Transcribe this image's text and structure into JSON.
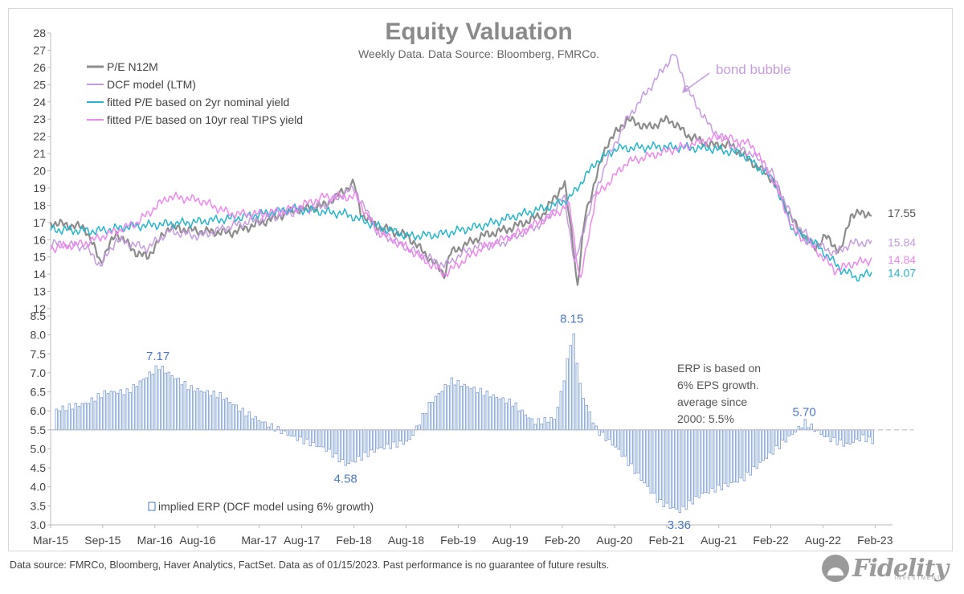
{
  "chart_data": {
    "type": "line",
    "title": "Equity Valuation",
    "subtitle": "Weekly Data. Data Source: Bloomberg, FMRCo.",
    "top_panel": {
      "ylim": [
        12,
        28
      ],
      "yticks": [
        12,
        13,
        14,
        15,
        16,
        17,
        18,
        19,
        20,
        21,
        22,
        23,
        24,
        25,
        26,
        27,
        28
      ],
      "series": [
        {
          "name": "P/E N12M",
          "color": "#8c8c8c",
          "end_label": "17.55",
          "x": [
            2015.17,
            2015.5,
            2015.65,
            2015.8,
            2016.0,
            2016.1,
            2016.3,
            2016.6,
            2016.9,
            2017.2,
            2017.5,
            2017.8,
            2018.08,
            2018.15,
            2018.3,
            2018.6,
            2018.95,
            2019.0,
            2019.3,
            2019.6,
            2019.9,
            2020.1,
            2020.2,
            2020.22,
            2020.3,
            2020.5,
            2020.7,
            2020.9,
            2021.1,
            2021.3,
            2021.5,
            2021.7,
            2021.9,
            2022.1,
            2022.3,
            2022.5,
            2022.6,
            2022.75,
            2022.85,
            2022.95,
            2023.05
          ],
          "values": [
            17.0,
            16.7,
            14.7,
            16.4,
            15.2,
            15.0,
            16.7,
            16.5,
            16.4,
            17.0,
            17.7,
            18.0,
            19.3,
            17.5,
            16.8,
            16.2,
            14.0,
            15.2,
            16.2,
            16.7,
            17.5,
            19.3,
            15.0,
            13.0,
            17.5,
            21.5,
            23.0,
            22.5,
            23.0,
            22.0,
            21.5,
            21.5,
            20.5,
            19.5,
            17.0,
            15.5,
            16.2,
            15.3,
            17.5,
            17.5,
            17.55
          ]
        },
        {
          "name": "DCF model (LTM)",
          "color": "#c79be0",
          "end_label": "",
          "x": [
            2015.17,
            2015.5,
            2015.65,
            2015.8,
            2016.1,
            2016.3,
            2016.6,
            2016.9,
            2017.2,
            2017.5,
            2017.8,
            2018.08,
            2018.3,
            2018.6,
            2018.95,
            2019.2,
            2019.5,
            2019.9,
            2020.1,
            2020.2,
            2020.3,
            2020.5,
            2020.7,
            2021.0,
            2021.15,
            2021.3,
            2021.5,
            2021.7,
            2021.9,
            2022.1,
            2022.3,
            2022.5,
            2022.7,
            2022.85,
            2023.05
          ],
          "values": [
            15.8,
            15.6,
            14.5,
            16.0,
            15.5,
            16.5,
            16.2,
            16.8,
            17.2,
            17.6,
            18.0,
            19.0,
            16.5,
            15.5,
            14.5,
            15.5,
            15.8,
            17.0,
            18.5,
            14.5,
            17.0,
            20.5,
            23.0,
            25.5,
            26.8,
            24.5,
            22.5,
            21.5,
            21.0,
            19.8,
            17.0,
            15.8,
            15.2,
            15.8,
            15.84
          ]
        },
        {
          "name": "fitted P/E based on 2yr nominal yield",
          "color": "#26b5cc",
          "end_label": "14.07",
          "x": [
            2015.17,
            2015.6,
            2016.0,
            2016.5,
            2017.0,
            2017.5,
            2018.0,
            2018.3,
            2018.6,
            2018.9,
            2019.3,
            2019.7,
            2020.0,
            2020.15,
            2020.4,
            2020.6,
            2021.0,
            2021.5,
            2021.8,
            2022.1,
            2022.3,
            2022.5,
            2022.75,
            2022.9,
            2023.05
          ],
          "values": [
            16.6,
            16.5,
            16.8,
            17.0,
            17.3,
            17.8,
            17.5,
            16.8,
            16.2,
            16.3,
            16.8,
            17.5,
            18.0,
            18.4,
            20.5,
            21.3,
            21.4,
            21.3,
            21.0,
            19.5,
            16.5,
            15.8,
            14.3,
            13.8,
            14.07
          ]
        },
        {
          "name": "fitted P/E based on 10yr real TIPS yield",
          "color": "#ee88ee",
          "end_label": "14.84",
          "x": [
            2015.17,
            2015.5,
            2015.8,
            2016.0,
            2016.3,
            2016.6,
            2016.9,
            2017.2,
            2017.5,
            2017.8,
            2018.1,
            2018.3,
            2018.6,
            2018.95,
            2019.3,
            2019.7,
            2020.0,
            2020.15,
            2020.25,
            2020.4,
            2020.7,
            2021.0,
            2021.3,
            2021.6,
            2021.9,
            2022.1,
            2022.3,
            2022.5,
            2022.7,
            2022.85,
            2023.05
          ],
          "values": [
            15.5,
            15.8,
            16.5,
            17.0,
            18.5,
            18.3,
            17.5,
            17.5,
            17.8,
            18.5,
            18.5,
            16.5,
            15.5,
            14.0,
            15.5,
            16.5,
            17.5,
            18.0,
            13.5,
            18.5,
            20.5,
            21.0,
            21.5,
            22.0,
            21.5,
            19.5,
            16.5,
            15.5,
            14.2,
            14.6,
            14.84
          ]
        }
      ],
      "end_labels_extra": [
        {
          "text": "15.84",
          "color": "#c79be0"
        }
      ],
      "annotation": {
        "text": "bond bubble",
        "color": "#c79be0"
      }
    },
    "bottom_panel": {
      "type": "bar",
      "ylim": [
        3.0,
        8.5
      ],
      "yticks": [
        "3.0",
        "3.5",
        "4.0",
        "4.5",
        "5.0",
        "5.5",
        "6.0",
        "6.5",
        "7.0",
        "7.5",
        "8.0",
        "8.5"
      ],
      "baseline": 5.5,
      "series_name": "implied ERP (DCF model using 6% growth)",
      "bar_color": "#4a78c8",
      "x": [
        2015.17,
        2015.5,
        2015.7,
        2015.9,
        2016.2,
        2016.5,
        2016.8,
        2017.0,
        2017.2,
        2017.5,
        2017.8,
        2018.0,
        2018.3,
        2018.6,
        2018.8,
        2019.0,
        2019.3,
        2019.6,
        2019.8,
        2020.0,
        2020.1,
        2020.17,
        2020.25,
        2020.4,
        2020.6,
        2020.8,
        2021.0,
        2021.2,
        2021.4,
        2021.6,
        2021.8,
        2022.0,
        2022.2,
        2022.4,
        2022.6,
        2022.8,
        2022.95,
        2023.05
      ],
      "values": [
        6.0,
        6.2,
        6.5,
        6.5,
        7.17,
        6.6,
        6.4,
        6.0,
        5.7,
        5.3,
        5.0,
        4.58,
        5.0,
        5.2,
        6.2,
        6.8,
        6.5,
        6.2,
        5.7,
        5.8,
        7.0,
        8.15,
        6.5,
        5.5,
        5.0,
        4.3,
        3.6,
        3.36,
        3.8,
        4.0,
        4.2,
        4.7,
        5.2,
        5.7,
        5.3,
        5.1,
        5.3,
        5.2
      ],
      "value_labels": [
        {
          "text": "7.17",
          "x": 2016.2,
          "y": 7.17
        },
        {
          "text": "4.58",
          "x": 2018.0,
          "y": 4.58
        },
        {
          "text": "8.15",
          "x": 2020.17,
          "y": 8.15
        },
        {
          "text": "3.36",
          "x": 2021.2,
          "y": 3.36
        },
        {
          "text": "5.70",
          "x": 2022.4,
          "y": 5.7
        }
      ],
      "note": [
        "ERP is based on",
        "6% EPS growth.",
        "average since",
        "2000: 5.5%"
      ]
    },
    "xlim": [
      2015.17,
      2023.17
    ],
    "xticks": [
      {
        "label": "Mar-15",
        "x": 2015.17
      },
      {
        "label": "Sep-15",
        "x": 2015.67
      },
      {
        "label": "Mar-16",
        "x": 2016.17
      },
      {
        "label": "Aug-16",
        "x": 2016.58
      },
      {
        "label": "Mar-17",
        "x": 2017.17
      },
      {
        "label": "Aug-17",
        "x": 2017.58
      },
      {
        "label": "Feb-18",
        "x": 2018.08
      },
      {
        "label": "Aug-18",
        "x": 2018.58
      },
      {
        "label": "Feb-19",
        "x": 2019.08
      },
      {
        "label": "Aug-19",
        "x": 2019.58
      },
      {
        "label": "Feb-20",
        "x": 2020.08
      },
      {
        "label": "Aug-20",
        "x": 2020.58
      },
      {
        "label": "Feb-21",
        "x": 2021.08
      },
      {
        "label": "Aug-21",
        "x": 2021.58
      },
      {
        "label": "Feb-22",
        "x": 2022.08
      },
      {
        "label": "Aug-22",
        "x": 2022.58
      },
      {
        "label": "Feb-23",
        "x": 2023.08
      }
    ]
  },
  "footer": {
    "source": "Data source: FMRCo, Bloomberg, Haver Analytics, FactSet. Data as of 01/15/2023. Past performance is no guarantee of future results."
  },
  "logo": {
    "text": "Fidelity",
    "sub": "INVESTMENTS"
  }
}
